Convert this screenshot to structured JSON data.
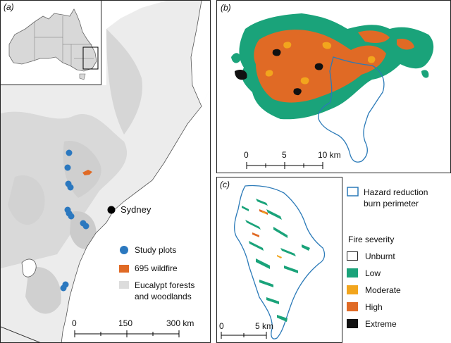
{
  "panel_a": {
    "label": "(a)",
    "city": "Sydney",
    "legend": {
      "study_plots": "Study plots",
      "wildfire": "695 wildfire",
      "forest_line1": "Eucalypt forests",
      "forest_line2": "and woodlands"
    },
    "scale": {
      "ticks": [
        "0",
        "150",
        "300 km"
      ]
    }
  },
  "panel_b": {
    "label": "(b)",
    "scale": {
      "ticks": [
        "0",
        "5",
        "10 km"
      ]
    }
  },
  "panel_c": {
    "label": "(c)",
    "scale": {
      "ticks": [
        "0",
        "5 km"
      ]
    }
  },
  "legend": {
    "perimeter_line1": "Hazard reduction",
    "perimeter_line2": "burn perimeter",
    "severity_title": "Fire severity",
    "classes": [
      {
        "label": "Unburnt",
        "color": "#ffffff"
      },
      {
        "label": "Low",
        "color": "#1aa37a"
      },
      {
        "label": "Moderate",
        "color": "#f2a51d"
      },
      {
        "label": "High",
        "color": "#e06a25"
      },
      {
        "label": "Extreme",
        "color": "#111111"
      }
    ]
  },
  "colors": {
    "study_plot": "#2b78bf",
    "wildfire": "#e06a25",
    "forest": "#dcdcdc",
    "perimeter": "#2b7ab8"
  }
}
